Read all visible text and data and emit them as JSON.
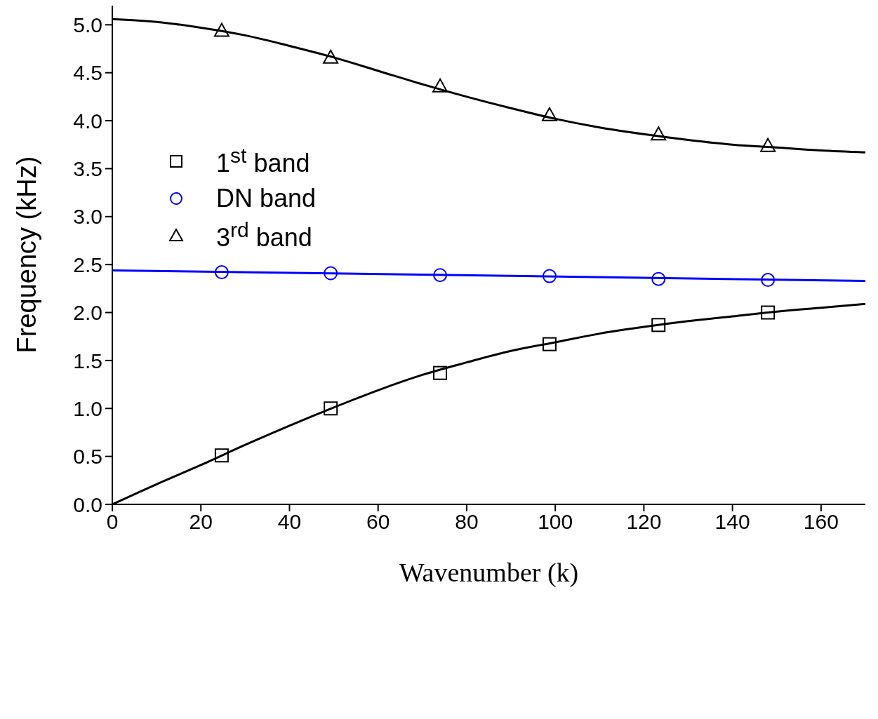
{
  "chart_data": {
    "type": "scatter",
    "xlabel": "Wavenumber (k)",
    "ylabel": "Frequency (kHz)",
    "xlim": [
      0,
      170
    ],
    "xticks": [
      0,
      20,
      40,
      60,
      80,
      100,
      120,
      140,
      160
    ],
    "ylim": [
      0,
      5.2
    ],
    "yticks": [
      {
        "value": 0,
        "label": "0.0"
      },
      {
        "value": 0.5,
        "label": "0.5"
      },
      {
        "value": 1,
        "label": "1.0"
      },
      {
        "value": 1.5,
        "label": "1.5"
      },
      {
        "value": 2,
        "label": "2.0"
      },
      {
        "value": 2.5,
        "label": "2.5"
      },
      {
        "value": 3,
        "label": "3.0"
      },
      {
        "value": 3.5,
        "label": "3.5"
      },
      {
        "value": 4,
        "label": "4.0"
      },
      {
        "value": 4.5,
        "label": "4.5"
      },
      {
        "value": 5,
        "label": "5.0"
      }
    ],
    "grid": false,
    "legend": "top left",
    "series": [
      {
        "type": "line",
        "color": "#000000",
        "marker": "none",
        "x": [
          0,
          10,
          20,
          30,
          40,
          50,
          60,
          70,
          80,
          90,
          100,
          110,
          120,
          130,
          140,
          150,
          160,
          170
        ],
        "values": [
          0,
          0.21,
          0.41,
          0.62,
          0.82,
          1.01,
          1.19,
          1.35,
          1.48,
          1.6,
          1.69,
          1.78,
          1.85,
          1.91,
          1.96,
          2.01,
          2.05,
          2.09
        ]
      },
      {
        "type": "line",
        "color": "#0000ff",
        "marker": "none",
        "x": [
          0,
          170
        ],
        "values": [
          2.44,
          2.33
        ]
      },
      {
        "type": "line",
        "color": "#000000",
        "marker": "none",
        "x": [
          0,
          10,
          20,
          30,
          40,
          50,
          60,
          70,
          80,
          90,
          100,
          110,
          120,
          130,
          140,
          150,
          160,
          170
        ],
        "values": [
          5.06,
          5.03,
          4.97,
          4.89,
          4.78,
          4.66,
          4.52,
          4.38,
          4.25,
          4.13,
          4.02,
          3.93,
          3.86,
          3.8,
          3.75,
          3.72,
          3.69,
          3.67
        ]
      },
      {
        "name": "1$^{st}$ band",
        "color": "#000000",
        "marker": "square",
        "x": [
          24.7,
          49.3,
          74,
          98.7,
          123.3,
          148
        ],
        "values": [
          0.51,
          1.0,
          1.37,
          1.67,
          1.87,
          2.0
        ]
      },
      {
        "name": "DN band",
        "color": "#0000ff",
        "marker": "circle",
        "x": [
          24.7,
          49.3,
          74,
          98.7,
          123.3,
          148
        ],
        "values": [
          2.42,
          2.41,
          2.39,
          2.38,
          2.35,
          2.34
        ]
      },
      {
        "name": "3$^{rd}$ band",
        "color": "#000000",
        "marker": "triangle",
        "x": [
          24.7,
          49.3,
          74,
          98.7,
          123.3,
          148
        ],
        "values": [
          4.94,
          4.66,
          4.36,
          4.06,
          3.86,
          3.74
        ]
      }
    ]
  }
}
